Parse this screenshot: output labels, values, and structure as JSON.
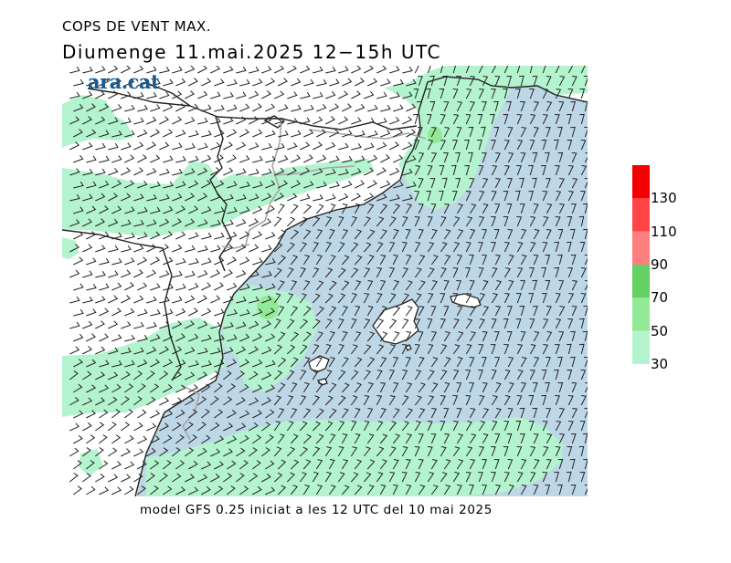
{
  "header": {
    "title": "COPS DE VENT MAX.",
    "subtitle": "Diumenge  11.mai.2025  12−15h UTC"
  },
  "logo": {
    "text": "ara.cat",
    "color": "#1b5a8e"
  },
  "footer": {
    "text": "model GFS 0.25 iniciat a les 12 UTC del 10 mai 2025"
  },
  "map": {
    "colors": {
      "sea": "#bed7e7",
      "land": "#ffffff",
      "coast": "#222222",
      "border": "#222222",
      "inner_border": "#a6a6a6",
      "barb": "#222222"
    }
  },
  "colorbar": {
    "ticks": [
      "130",
      "110",
      "90",
      "70",
      "50",
      "30"
    ],
    "bins": [
      {
        "from": 30,
        "to": 50,
        "color": "#b3f4cf"
      },
      {
        "from": 50,
        "to": 70,
        "color": "#92ea96"
      },
      {
        "from": 70,
        "to": 90,
        "color": "#63d063"
      },
      {
        "from": 90,
        "to": 110,
        "color": "#ff8080"
      },
      {
        "from": 110,
        "to": 130,
        "color": "#ff4545"
      },
      {
        "from": 130,
        "to": 150,
        "color": "#f50000"
      }
    ]
  }
}
